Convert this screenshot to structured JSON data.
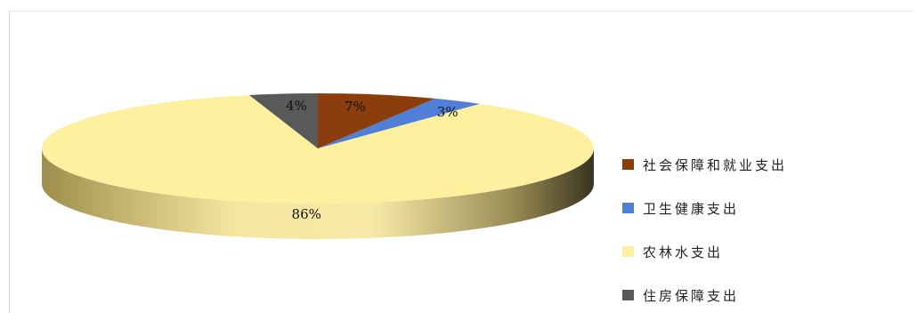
{
  "chart_data": {
    "type": "pie",
    "style": "3d",
    "categories": [
      "社会保障和就业支出",
      "卫生健康支出",
      "农林水支出",
      "住房保障支出"
    ],
    "values": [
      7,
      3,
      86,
      4
    ],
    "labels": [
      "7%",
      "3%",
      "86%",
      "4%"
    ],
    "colors": [
      "#8B3E0C",
      "#4F7FD6",
      "#FFF0A0",
      "#595959"
    ],
    "side_colors": [
      "#5e2a08",
      "#2f56a0",
      "#c8b86a",
      "#3a3a3a"
    ],
    "legend_position": "right"
  },
  "legend": {
    "items": [
      {
        "label": "社会保障和就业支出",
        "color": "#8B3E0C"
      },
      {
        "label": "卫生健康支出",
        "color": "#4F7FD6"
      },
      {
        "label": "农林水支出",
        "color": "#FFF0A0"
      },
      {
        "label": "住房保障支出",
        "color": "#595959"
      }
    ]
  }
}
